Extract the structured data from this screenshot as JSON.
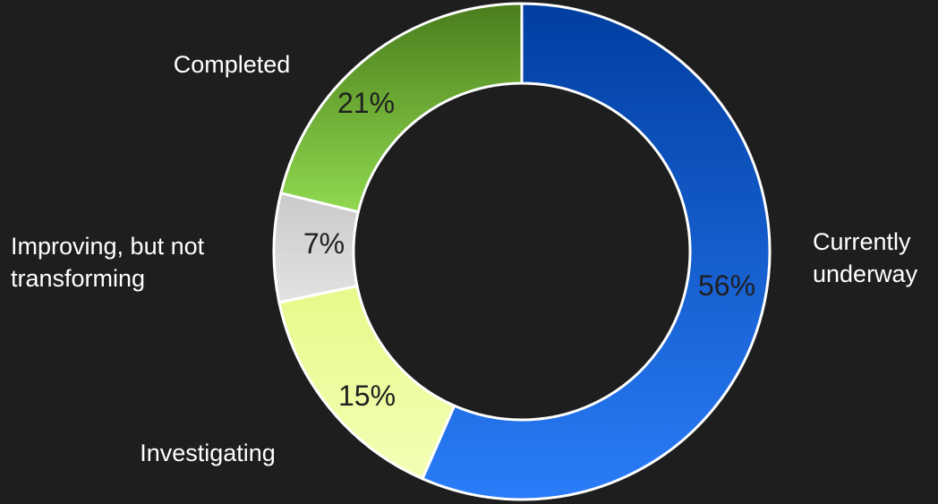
{
  "chart_data": {
    "type": "pie",
    "style": "donut",
    "legend": "none",
    "categories": [
      "Currently underway",
      "Investigating",
      "Improving, but not transforming",
      "Completed"
    ],
    "values": [
      56,
      15,
      7,
      21
    ],
    "data_labels": [
      "56%",
      "15%",
      "7%",
      "21%"
    ],
    "category_label_lines": [
      [
        "Currently",
        "underway"
      ],
      [
        "Investigating"
      ],
      [
        "Improving, but not",
        "transforming"
      ],
      [
        "Completed"
      ]
    ],
    "colors": [
      [
        "#2a7cf8",
        "#003ea0"
      ],
      [
        "#f3ffb5",
        "#e6f98a"
      ],
      [
        "#e2e2e2",
        "#cacaca"
      ],
      [
        "#8fd94f",
        "#4a7d1c"
      ]
    ]
  }
}
